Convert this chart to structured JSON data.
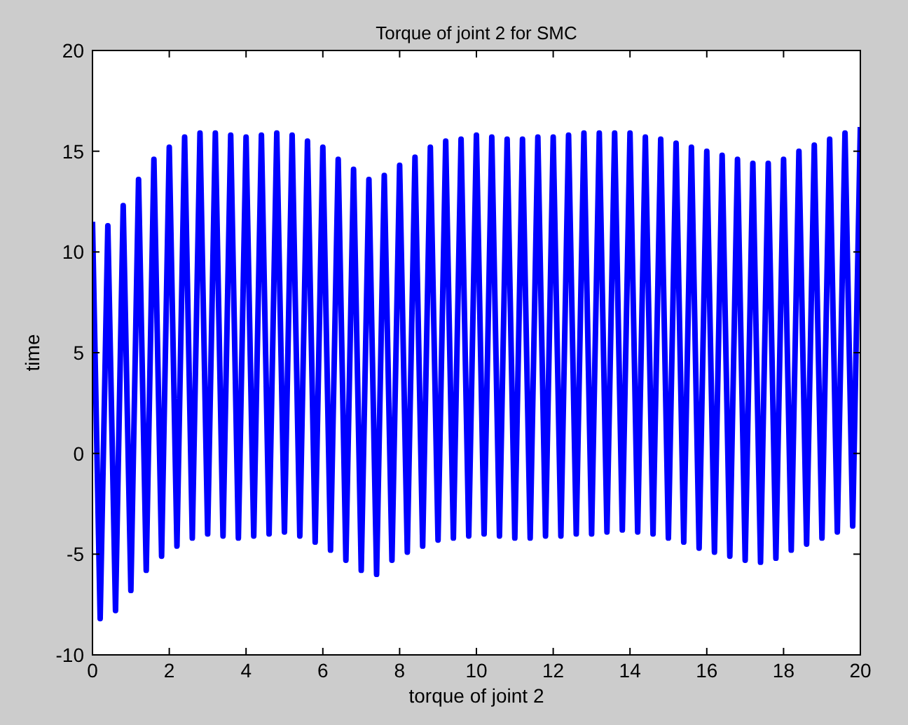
{
  "chart_data": {
    "type": "line",
    "title": "Torque of joint 2 for SMC",
    "xlabel": "torque of joint 2",
    "ylabel": "time",
    "x": [
      0,
      0.2,
      0.4,
      0.6,
      0.8,
      1,
      1.2,
      1.4,
      1.6,
      1.8,
      2,
      2.2,
      2.4,
      2.6,
      2.8,
      3,
      3.2,
      3.4,
      3.6,
      3.8,
      4,
      4.2,
      4.4,
      4.6,
      4.8,
      5,
      5.2,
      5.4,
      5.6,
      5.8,
      6,
      6.2,
      6.4,
      6.6,
      6.8,
      7,
      7.2,
      7.4,
      7.6,
      7.8,
      8,
      8.2,
      8.4,
      8.6,
      8.8,
      9,
      9.2,
      9.4,
      9.6,
      9.8,
      10,
      10.2,
      10.4,
      10.6,
      10.8,
      11,
      11.2,
      11.4,
      11.6,
      11.8,
      12,
      12.2,
      12.4,
      12.6,
      12.8,
      13,
      13.2,
      13.4,
      13.6,
      13.8,
      14,
      14.2,
      14.4,
      14.6,
      14.8,
      15,
      15.2,
      15.4,
      15.6,
      15.8,
      16,
      16.2,
      16.4,
      16.6,
      16.8,
      17,
      17.2,
      17.4,
      17.6,
      17.8,
      18,
      18.2,
      18.4,
      18.6,
      18.8,
      19,
      19.2,
      19.4,
      19.6,
      19.8,
      20
    ],
    "series": [
      {
        "color": "#0000ff",
        "values": [
          11.5,
          -8.2,
          11.3,
          -7.8,
          12.3,
          -6.8,
          13.6,
          -5.8,
          14.6,
          -5.1,
          15.2,
          -4.6,
          15.7,
          -4.2,
          15.9,
          -4,
          15.9,
          -4.1,
          15.8,
          -4.2,
          15.7,
          -4.1,
          15.8,
          -4,
          15.9,
          -3.9,
          15.8,
          -4.1,
          15.5,
          -4.4,
          15.2,
          -4.8,
          14.6,
          -5.3,
          14.1,
          -5.8,
          13.6,
          -6,
          13.8,
          -5.3,
          14.3,
          -4.9,
          14.7,
          -4.6,
          15.2,
          -4.3,
          15.5,
          -4.2,
          15.6,
          -4.1,
          15.8,
          -4,
          15.7,
          -4.1,
          15.6,
          -4.2,
          15.6,
          -4.2,
          15.7,
          -4.1,
          15.7,
          -4.1,
          15.8,
          -4,
          15.9,
          -4,
          15.9,
          -3.9,
          15.9,
          -3.8,
          15.9,
          -3.9,
          15.7,
          -4,
          15.6,
          -4.2,
          15.4,
          -4.4,
          15.2,
          -4.7,
          15,
          -4.9,
          14.8,
          -5.1,
          14.6,
          -5.3,
          14.4,
          -5.4,
          14.4,
          -5.2,
          14.6,
          -4.8,
          15,
          -4.5,
          15.3,
          -4.2,
          15.6,
          -3.9,
          15.9,
          -3.6,
          16.2
        ]
      }
    ],
    "xlim": [
      0,
      20
    ],
    "ylim": [
      -10,
      20
    ],
    "xticks": [
      0,
      2,
      4,
      6,
      8,
      10,
      12,
      14,
      16,
      18,
      20
    ],
    "yticks": [
      -10,
      -5,
      0,
      5,
      10,
      15,
      20
    ],
    "grid": false
  }
}
